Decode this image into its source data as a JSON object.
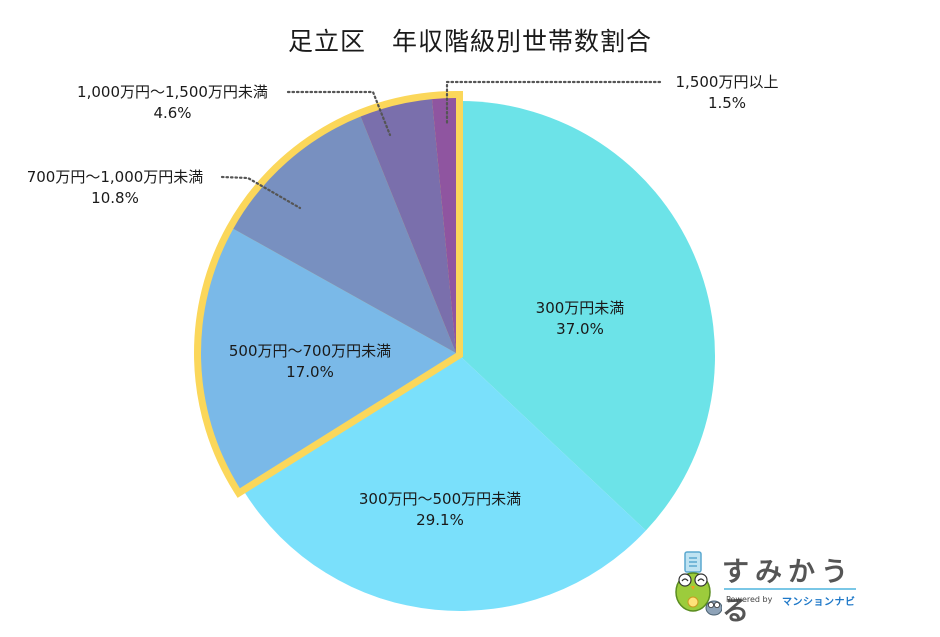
{
  "title": {
    "part1": "足立区",
    "part2": "年収階級別世帯数割合"
  },
  "chart_data": {
    "type": "pie",
    "title": "足立区 年収階級別世帯数割合",
    "start_angle": "12 o'clock",
    "direction": "clockwise",
    "categories": [
      "300万円未満",
      "300万円～500万円未満",
      "500万円～700万円未満",
      "700万円～1,000万円未満",
      "1,000万円～1,500万円未満",
      "1,500万円以上"
    ],
    "values": [
      37.0,
      29.1,
      17.0,
      10.8,
      4.6,
      1.5
    ],
    "unit": "%",
    "colors": [
      "#6ce3e8",
      "#7ae0fb",
      "#7ab9e8",
      "#7890c0",
      "#7a6fac",
      "#8f55a0"
    ],
    "highlight": {
      "slices": [
        "500万円～700万円未満",
        "700万円～1,000万円未満",
        "1,000万円～1,500万円未満",
        "1,500万円以上"
      ],
      "outline_color": "#fbd75a",
      "note": "exploded group with yellow outline"
    },
    "legend": "none",
    "labels": [
      {
        "name": "300万円未満",
        "value": "37.0%",
        "position": "inside"
      },
      {
        "name": "300万円～500万円未満",
        "value": "29.1%",
        "position": "inside"
      },
      {
        "name": "500万円～700万円未満",
        "value": "17.0%",
        "position": "inside"
      },
      {
        "name": "700万円～1,000万円未満",
        "value": "10.8%",
        "position": "outside-leader"
      },
      {
        "name": "1,000万円～1,500万円未満",
        "value": "4.6%",
        "position": "outside-leader"
      },
      {
        "name": "1,500万円以上",
        "value": "1.5%",
        "position": "outside-leader"
      }
    ]
  },
  "labels": {
    "s0": {
      "name": "300万円未満",
      "value": "37.0%"
    },
    "s1": {
      "name": "300万円～500万円未満",
      "value": "29.1%"
    },
    "s2": {
      "name": "500万円～700万円未満",
      "value": "17.0%"
    },
    "s3": {
      "name": "700万円～1,000万円未満",
      "value": "10.8%"
    },
    "s4": {
      "name": "1,000万円～1,500万円未満",
      "value": "4.6%"
    },
    "s5": {
      "name": "1,500万円以上",
      "value": "1.5%"
    }
  },
  "logo": {
    "wordmark": "すみかうる",
    "powered_by": "Powered by",
    "brand": "マンションナビ"
  }
}
